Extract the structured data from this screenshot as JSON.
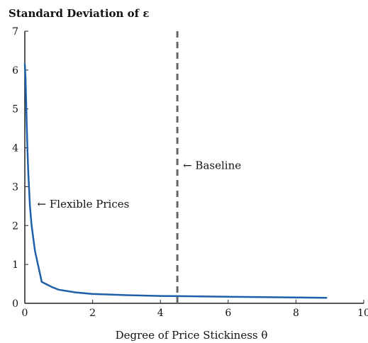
{
  "chart_data": {
    "type": "line",
    "title": "Standard Deviation of ε",
    "xlabel": "Degree of Price Stickiness θ",
    "ylabel": "",
    "xlim": [
      0,
      10
    ],
    "ylim": [
      0,
      7
    ],
    "xticks": [
      0,
      2,
      4,
      6,
      8,
      10
    ],
    "yticks": [
      0,
      1,
      2,
      3,
      4,
      5,
      6,
      7
    ],
    "grid": false,
    "series": [
      {
        "color": "#1f5fa8",
        "x": [
          0.0,
          0.02,
          0.05,
          0.08,
          0.1,
          0.15,
          0.2,
          0.3,
          0.5,
          0.8,
          1.0,
          1.5,
          2.0,
          3.0,
          4.0,
          5.0,
          6.0,
          7.0,
          8.0,
          8.9
        ],
        "y": [
          6.15,
          5.8,
          4.8,
          3.9,
          3.4,
          2.5,
          2.0,
          1.35,
          0.55,
          0.42,
          0.35,
          0.28,
          0.24,
          0.21,
          0.19,
          0.18,
          0.17,
          0.16,
          0.15,
          0.14
        ]
      }
    ],
    "vline": {
      "x": 4.5,
      "style": "dashed",
      "color": "#666666"
    },
    "annotations": [
      {
        "text": "← Baseline",
        "x": 4.5,
        "y": 3.55
      },
      {
        "text": "← Flexible Prices",
        "x": 0.2,
        "y": 2.55
      }
    ]
  }
}
